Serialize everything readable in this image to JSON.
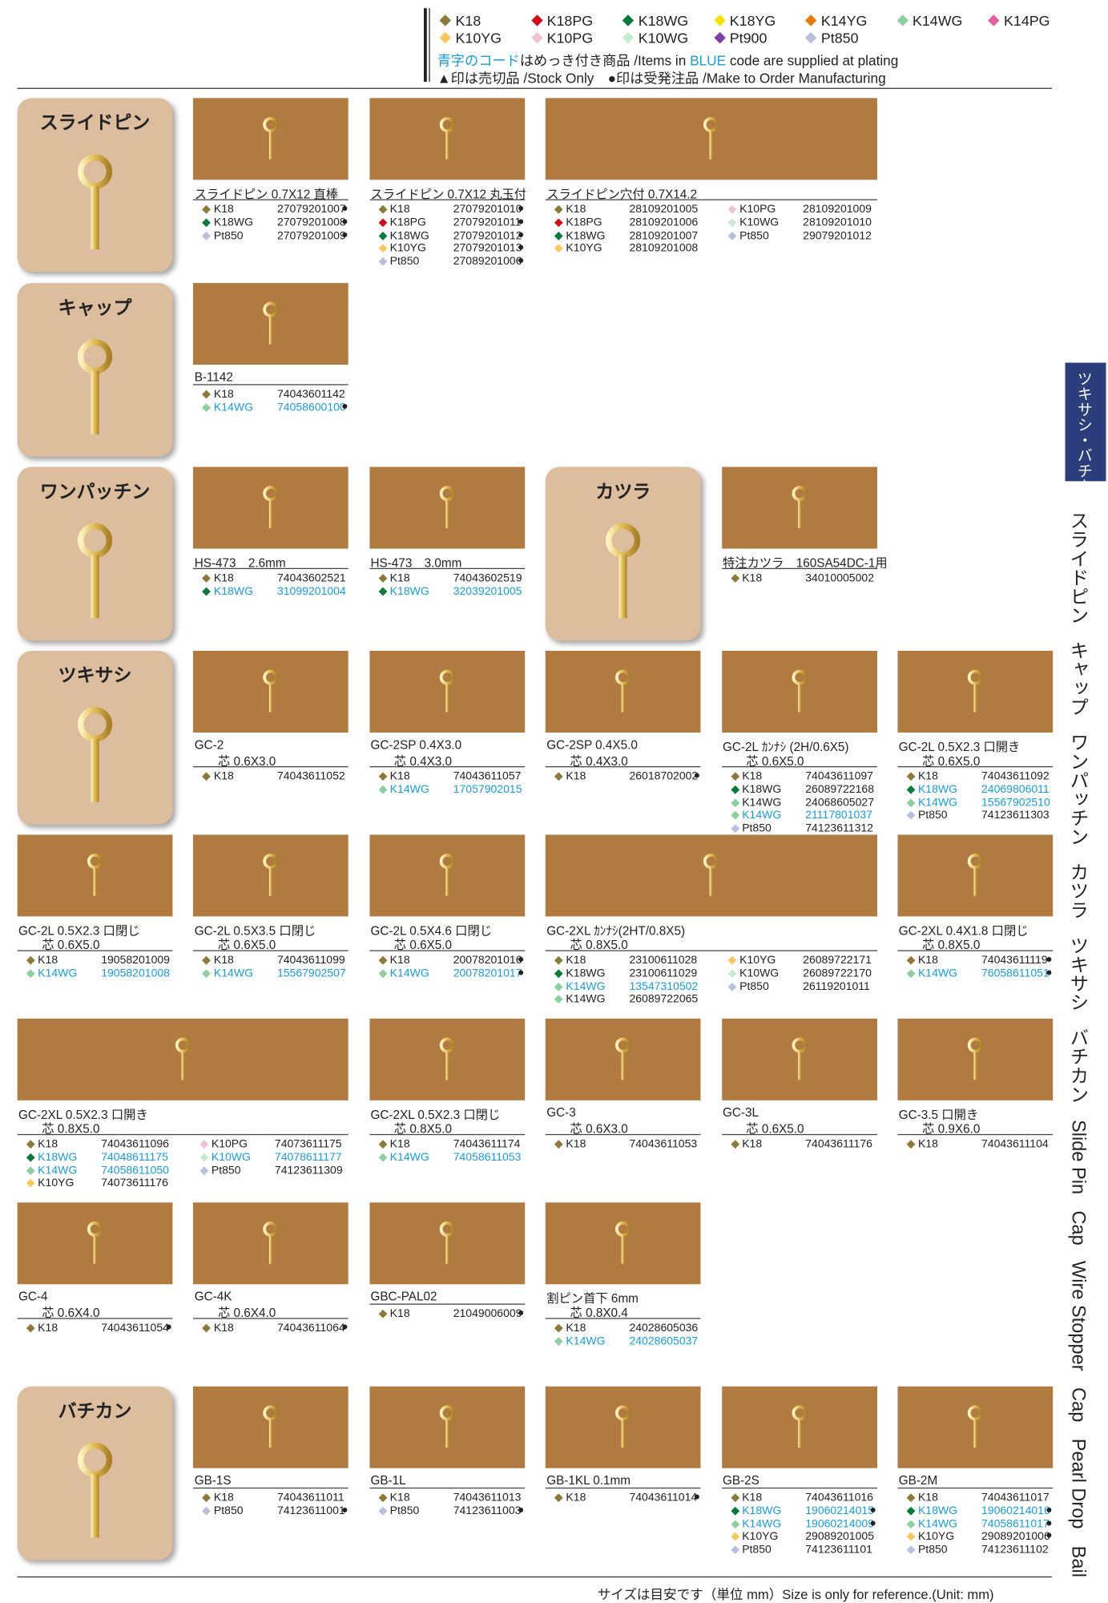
{
  "header": {
    "legend": [
      {
        "label": "K18",
        "color": "#8b7a3a"
      },
      {
        "label": "K18PG",
        "color": "#d0101c"
      },
      {
        "label": "K18WG",
        "color": "#0a7a3a"
      },
      {
        "label": "K18YG",
        "color": "#f5e000"
      },
      {
        "label": "K14YG",
        "color": "#e87a10"
      },
      {
        "label": "K14WG",
        "color": "#8fcf9f"
      },
      {
        "label": "K14PG",
        "color": "#e060a0"
      },
      {
        "label": "K10YG",
        "color": "#f8c860"
      },
      {
        "label": "K10PG",
        "color": "#f0c0d8"
      },
      {
        "label": "K10WG",
        "color": "#c8e8d0"
      },
      {
        "label": "Pt900",
        "color": "#8040a0"
      },
      {
        "label": "Pt850",
        "color": "#b8c0e0"
      }
    ],
    "blue_note": [
      "青字のコード",
      "はめっき付き商品 /Items in ",
      "BLUE",
      " code are supplied at plating"
    ],
    "mark_note": "▲印は売切品 /Stock Only　●印は受発注品 /Make to Order Manufacturing"
  },
  "categories": [
    {
      "label": "スライドピン"
    },
    {
      "label": "キャップ"
    },
    {
      "label": "ワンパッチン"
    },
    {
      "label": "カツラ"
    },
    {
      "label": "ツキサシ"
    },
    {
      "label": "バチカン"
    }
  ],
  "products": [
    {
      "name": "スライドピン 0.7X12 直棒",
      "codes": [
        [
          {
            "metal": "K18",
            "code": "27079201007",
            "mark": "●"
          },
          {
            "metal": "K18WG",
            "code": "27079201008",
            "mark": "●"
          },
          {
            "metal": "Pt850",
            "code": "27079201009",
            "mark": "●"
          }
        ]
      ]
    },
    {
      "name": "スライドピン 0.7X12 丸玉付",
      "codes": [
        [
          {
            "metal": "K18",
            "code": "27079201010",
            "mark": "●"
          },
          {
            "metal": "K18PG",
            "code": "27079201011",
            "mark": "●"
          },
          {
            "metal": "K18WG",
            "code": "27079201012",
            "mark": "●"
          },
          {
            "metal": "K10YG",
            "code": "27079201013",
            "mark": "●"
          },
          {
            "metal": "Pt850",
            "code": "27089201006",
            "mark": "●"
          }
        ]
      ]
    },
    {
      "name": "スライドピン穴付 0.7X14.2",
      "codes": [
        [
          {
            "metal": "K18",
            "code": "28109201005"
          },
          {
            "metal": "K18PG",
            "code": "28109201006"
          },
          {
            "metal": "K18WG",
            "code": "28109201007"
          },
          {
            "metal": "K10YG",
            "code": "28109201008"
          }
        ],
        [
          {
            "metal": "K10PG",
            "code": "28109201009"
          },
          {
            "metal": "K10WG",
            "code": "28109201010"
          },
          {
            "metal": "Pt850",
            "code": "29079201012"
          }
        ]
      ]
    },
    {
      "name": "B-1142",
      "codes": [
        [
          {
            "metal": "K18",
            "code": "74043601142"
          },
          {
            "metal": "K14WG",
            "code": "74058600100",
            "mark": "●",
            "blue": true
          }
        ]
      ]
    },
    {
      "name": "HS-473　2.6mm",
      "codes": [
        [
          {
            "metal": "K18",
            "code": "74043602521"
          },
          {
            "metal": "K18WG",
            "code": "31099201004",
            "blue": true
          }
        ]
      ]
    },
    {
      "name": "HS-473　3.0mm",
      "codes": [
        [
          {
            "metal": "K18",
            "code": "74043602519"
          },
          {
            "metal": "K18WG",
            "code": "32039201005",
            "blue": true
          }
        ]
      ]
    },
    {
      "name": "特注カツラ　160SA54DC-1用",
      "codes": [
        [
          {
            "metal": "K18",
            "code": "34010005002"
          }
        ]
      ]
    },
    {
      "name": "GC-2",
      "spec": "芯 0.6X3.0",
      "codes": [
        [
          {
            "metal": "K18",
            "code": "74043611052"
          }
        ]
      ]
    },
    {
      "name": "GC-2SP 0.4X3.0",
      "spec": "芯 0.4X3.0",
      "codes": [
        [
          {
            "metal": "K18",
            "code": "74043611057"
          },
          {
            "metal": "K14WG",
            "code": "17057902015",
            "blue": true
          }
        ]
      ]
    },
    {
      "name": "GC-2SP 0.4X5.0",
      "spec": "芯 0.4X3.0",
      "codes": [
        [
          {
            "metal": "K18",
            "code": "26018702002",
            "mark": "●"
          }
        ]
      ]
    },
    {
      "name": "GC-2L ｶﾝﾅｼ (2H/0.6X5)",
      "spec": "芯 0.6X5.0",
      "codes": [
        [
          {
            "metal": "K18",
            "code": "74043611097"
          },
          {
            "metal": "K18WG",
            "code": "26089722168"
          },
          {
            "metal": "K14WG",
            "code": "24068605027"
          },
          {
            "metal": "K14WG",
            "code": "21117801037",
            "blue": true
          },
          {
            "metal": "Pt850",
            "code": "74123611312"
          }
        ]
      ]
    },
    {
      "name": "GC-2L 0.5X2.3 口開き",
      "spec": "芯 0.6X5.0",
      "codes": [
        [
          {
            "metal": "K18",
            "code": "74043611092"
          },
          {
            "metal": "K18WG",
            "code": "24069806011",
            "blue": true
          },
          {
            "metal": "K14WG",
            "code": "15567902510",
            "blue": true
          },
          {
            "metal": "Pt850",
            "code": "74123611303"
          }
        ]
      ]
    },
    {
      "name": "GC-2L 0.5X2.3 口閉じ",
      "spec": "芯 0.6X5.0",
      "codes": [
        [
          {
            "metal": "K18",
            "code": "19058201009"
          },
          {
            "metal": "K14WG",
            "code": "19058201008",
            "blue": true
          }
        ]
      ]
    },
    {
      "name": "GC-2L 0.5X3.5 口閉じ",
      "spec": "芯 0.6X5.0",
      "codes": [
        [
          {
            "metal": "K18",
            "code": "74043611099"
          },
          {
            "metal": "K14WG",
            "code": "15567902507",
            "blue": true
          }
        ]
      ]
    },
    {
      "name": "GC-2L 0.5X4.6 口閉じ",
      "spec": "芯 0.6X5.0",
      "codes": [
        [
          {
            "metal": "K18",
            "code": "20078201016",
            "mark": "●"
          },
          {
            "metal": "K14WG",
            "code": "20078201017",
            "mark": "●",
            "blue": true
          }
        ]
      ]
    },
    {
      "name": "GC-2XL ｶﾝﾅｼ(2HT/0.8X5)",
      "spec": "芯 0.8X5.0",
      "codes": [
        [
          {
            "metal": "K18",
            "code": "23100611028"
          },
          {
            "metal": "K18WG",
            "code": "23100611029"
          },
          {
            "metal": "K14WG",
            "code": "13547310502",
            "blue": true
          },
          {
            "metal": "K14WG",
            "code": "26089722065"
          }
        ],
        [
          {
            "metal": "K10YG",
            "code": "26089722171"
          },
          {
            "metal": "K10WG",
            "code": "26089722170"
          },
          {
            "metal": "Pt850",
            "code": "26119201011"
          }
        ]
      ]
    },
    {
      "name": "GC-2XL 0.4X1.8 口閉じ",
      "spec": "芯 0.8X5.0",
      "codes": [
        [
          {
            "metal": "K18",
            "code": "74043611119",
            "mark": "●"
          },
          {
            "metal": "K14WG",
            "code": "76058611051",
            "mark": "●",
            "blue": true
          }
        ]
      ]
    },
    {
      "name": "GC-2XL 0.5X2.3 口開き",
      "spec": "芯 0.8X5.0",
      "codes": [
        [
          {
            "metal": "K18",
            "code": "74043611096"
          },
          {
            "metal": "K18WG",
            "code": "74048611175",
            "blue": true
          },
          {
            "metal": "K14WG",
            "code": "74058611050",
            "blue": true
          },
          {
            "metal": "K10YG",
            "code": "74073611176"
          }
        ],
        [
          {
            "metal": "K10PG",
            "code": "74073611175"
          },
          {
            "metal": "K10WG",
            "code": "74078611177",
            "blue": true
          },
          {
            "metal": "Pt850",
            "code": "74123611309"
          }
        ]
      ]
    },
    {
      "name": "GC-2XL 0.5X2.3 口閉じ",
      "spec": "芯 0.8X5.0",
      "codes": [
        [
          {
            "metal": "K18",
            "code": "74043611174"
          },
          {
            "metal": "K14WG",
            "code": "74058611053",
            "blue": true
          }
        ]
      ]
    },
    {
      "name": "GC-3",
      "spec": "芯 0.6X3.0",
      "codes": [
        [
          {
            "metal": "K18",
            "code": "74043611053"
          }
        ]
      ]
    },
    {
      "name": "GC-3L",
      "spec": "芯 0.6X5.0",
      "codes": [
        [
          {
            "metal": "K18",
            "code": "74043611176"
          }
        ]
      ]
    },
    {
      "name": "GC-3.5 口開き",
      "spec": "芯 0.9X6.0",
      "codes": [
        [
          {
            "metal": "K18",
            "code": "74043611104"
          }
        ]
      ]
    },
    {
      "name": "GC-4",
      "spec": "芯 0.6X4.0",
      "codes": [
        [
          {
            "metal": "K18",
            "code": "74043611054",
            "mark": "●"
          }
        ]
      ]
    },
    {
      "name": "GC-4K",
      "spec": "芯 0.6X4.0",
      "codes": [
        [
          {
            "metal": "K18",
            "code": "74043611064",
            "mark": "●"
          }
        ]
      ]
    },
    {
      "name": "GBC-PAL02",
      "codes": [
        [
          {
            "metal": "K18",
            "code": "21049006009",
            "mark": "●"
          }
        ]
      ]
    },
    {
      "name": "割ピン首下 6mm",
      "spec": "芯 0.8X0.4",
      "codes": [
        [
          {
            "metal": "K18",
            "code": "24028605036"
          },
          {
            "metal": "K14WG",
            "code": "24028605037",
            "blue": true
          }
        ]
      ]
    },
    {
      "name": "GB-1S",
      "codes": [
        [
          {
            "metal": "K18",
            "code": "74043611011"
          },
          {
            "metal": "Pt850",
            "code": "74123611001",
            "mark": "●"
          }
        ]
      ]
    },
    {
      "name": "GB-1L",
      "codes": [
        [
          {
            "metal": "K18",
            "code": "74043611013"
          },
          {
            "metal": "Pt850",
            "code": "74123611003",
            "mark": "●"
          }
        ]
      ]
    },
    {
      "name": "GB-1KL 0.1mm",
      "codes": [
        [
          {
            "metal": "K18",
            "code": "74043611014",
            "mark": "●"
          }
        ]
      ]
    },
    {
      "name": "GB-2S",
      "codes": [
        [
          {
            "metal": "K18",
            "code": "74043611016"
          },
          {
            "metal": "K18WG",
            "code": "19060214015",
            "mark": "●",
            "blue": true
          },
          {
            "metal": "K14WG",
            "code": "19060214009",
            "mark": "●",
            "blue": true
          },
          {
            "metal": "K10YG",
            "code": "29089201005"
          },
          {
            "metal": "Pt850",
            "code": "74123611101"
          }
        ]
      ]
    },
    {
      "name": "GB-2M",
      "codes": [
        [
          {
            "metal": "K18",
            "code": "74043611017"
          },
          {
            "metal": "K18WG",
            "code": "19060214016",
            "mark": "●",
            "blue": true
          },
          {
            "metal": "K14WG",
            "code": "74058611017",
            "mark": "●",
            "blue": true
          },
          {
            "metal": "K10YG",
            "code": "29089201006",
            "mark": "●"
          },
          {
            "metal": "Pt850",
            "code": "74123611102"
          }
        ]
      ]
    }
  ],
  "side": {
    "tab": "ツキサシ・バチカン",
    "index": [
      "スライドピン",
      "キャップ",
      "ワンパッチン",
      "カツラ",
      "ツキサシ",
      "バチカン",
      "Slide Pin",
      "Cap",
      "Wire Stopper",
      "Cap",
      "Pearl Drop",
      "Bail"
    ]
  },
  "footer": "サイズは目安です（単位 mm）Size is only for reference.(Unit: mm)"
}
